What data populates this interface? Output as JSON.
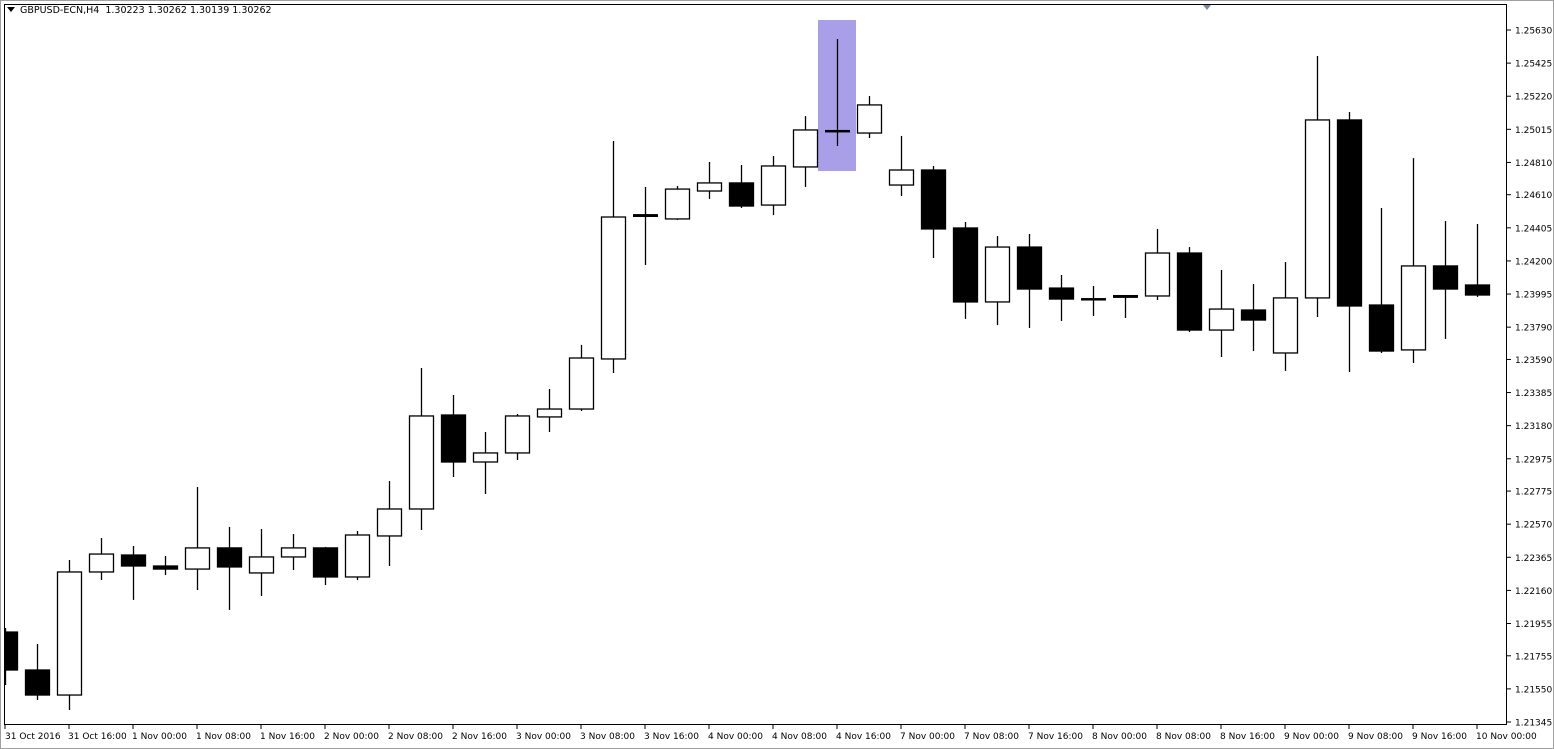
{
  "header": {
    "symbol_timeframe": "GBPUSD-ECN,H4",
    "ohlc_readout": "1.30223 1.30262 1.30139 1.30262"
  },
  "colors": {
    "bull_body": "#ffffff",
    "bear_body": "#000000",
    "highlight": "#a99fe8",
    "background": "#ffffff"
  },
  "chart_data": {
    "type": "candlestick",
    "title": "GBPUSD-ECN,H4",
    "ylim": [
      1.21345,
      1.2563
    ],
    "grid": false,
    "y_ticks": [
      "1.25630",
      "1.25425",
      "1.25220",
      "1.25015",
      "1.24810",
      "1.24610",
      "1.24405",
      "1.24200",
      "1.23995",
      "1.23790",
      "1.23590",
      "1.23385",
      "1.23180",
      "1.22975",
      "1.22775",
      "1.22570",
      "1.22365",
      "1.22160",
      "1.21955",
      "1.21755",
      "1.21550",
      "1.21345"
    ],
    "x_ticks": [
      "31 Oct 2016",
      "31 Oct 16:00",
      "1 Nov 00:00",
      "1 Nov 08:00",
      "1 Nov 16:00",
      "2 Nov 00:00",
      "2 Nov 08:00",
      "2 Nov 16:00",
      "3 Nov 00:00",
      "3 Nov 08:00",
      "3 Nov 16:00",
      "4 Nov 00:00",
      "4 Nov 08:00",
      "4 Nov 16:00",
      "7 Nov 00:00",
      "7 Nov 08:00",
      "7 Nov 16:00",
      "8 Nov 00:00",
      "8 Nov 08:00",
      "8 Nov 16:00",
      "9 Nov 00:00",
      "9 Nov 08:00",
      "9 Nov 16:00",
      "10 Nov 00:00"
    ],
    "highlighted_candle_index": 26,
    "candles": [
      {
        "o": 1.21902,
        "h": 1.21927,
        "l": 1.21574,
        "c": 1.21667
      },
      {
        "o": 1.21667,
        "h": 1.21828,
        "l": 1.21481,
        "c": 1.21512
      },
      {
        "o": 1.21512,
        "h": 1.22348,
        "l": 1.21419,
        "c": 1.22274
      },
      {
        "o": 1.22274,
        "h": 1.22484,
        "l": 1.22224,
        "c": 1.22385
      },
      {
        "o": 1.22379,
        "h": 1.22435,
        "l": 1.22101,
        "c": 1.22311
      },
      {
        "o": 1.22311,
        "h": 1.22373,
        "l": 1.22255,
        "c": 1.22292
      },
      {
        "o": 1.22292,
        "h": 1.228,
        "l": 1.22162,
        "c": 1.22423
      },
      {
        "o": 1.22423,
        "h": 1.22553,
        "l": 1.22039,
        "c": 1.22305
      },
      {
        "o": 1.22268,
        "h": 1.2254,
        "l": 1.22125,
        "c": 1.22367
      },
      {
        "o": 1.22367,
        "h": 1.22509,
        "l": 1.22286,
        "c": 1.22423
      },
      {
        "o": 1.22423,
        "h": 1.22429,
        "l": 1.22193,
        "c": 1.22243
      },
      {
        "o": 1.22243,
        "h": 1.22528,
        "l": 1.22224,
        "c": 1.22503
      },
      {
        "o": 1.22497,
        "h": 1.22837,
        "l": 1.22311,
        "c": 1.22664
      },
      {
        "o": 1.22664,
        "h": 1.23537,
        "l": 1.22534,
        "c": 1.2324
      },
      {
        "o": 1.23246,
        "h": 1.2337,
        "l": 1.22862,
        "c": 1.22955
      },
      {
        "o": 1.22955,
        "h": 1.23141,
        "l": 1.22757,
        "c": 1.23011
      },
      {
        "o": 1.23011,
        "h": 1.23252,
        "l": 1.22967,
        "c": 1.2324
      },
      {
        "o": 1.23234,
        "h": 1.23407,
        "l": 1.23141,
        "c": 1.23283
      },
      {
        "o": 1.23283,
        "h": 1.2368,
        "l": 1.23271,
        "c": 1.23599
      },
      {
        "o": 1.23593,
        "h": 1.24943,
        "l": 1.23506,
        "c": 1.24472
      },
      {
        "o": 1.24484,
        "h": 1.24658,
        "l": 1.24175,
        "c": 1.24472
      },
      {
        "o": 1.2446,
        "h": 1.24664,
        "l": 1.24454,
        "c": 1.24645
      },
      {
        "o": 1.24633,
        "h": 1.24813,
        "l": 1.24584,
        "c": 1.24683
      },
      {
        "o": 1.24683,
        "h": 1.24794,
        "l": 1.24528,
        "c": 1.2454
      },
      {
        "o": 1.24546,
        "h": 1.2485,
        "l": 1.24484,
        "c": 1.24788
      },
      {
        "o": 1.24782,
        "h": 1.25097,
        "l": 1.24658,
        "c": 1.25011
      },
      {
        "o": 1.25005,
        "h": 1.25574,
        "l": 1.24912,
        "c": 1.25003
      },
      {
        "o": 1.24992,
        "h": 1.25221,
        "l": 1.24961,
        "c": 1.25166
      },
      {
        "o": 1.2467,
        "h": 1.24974,
        "l": 1.24602,
        "c": 1.24763
      },
      {
        "o": 1.24763,
        "h": 1.24788,
        "l": 1.24218,
        "c": 1.24398
      },
      {
        "o": 1.24404,
        "h": 1.24441,
        "l": 1.23841,
        "c": 1.23946
      },
      {
        "o": 1.23946,
        "h": 1.24354,
        "l": 1.23803,
        "c": 1.24286
      },
      {
        "o": 1.24286,
        "h": 1.24367,
        "l": 1.23785,
        "c": 1.24026
      },
      {
        "o": 1.24032,
        "h": 1.24113,
        "l": 1.23828,
        "c": 1.23964
      },
      {
        "o": 1.23964,
        "h": 1.24045,
        "l": 1.23859,
        "c": 1.23963
      },
      {
        "o": 1.23971,
        "h": 1.23989,
        "l": 1.23847,
        "c": 1.23983
      },
      {
        "o": 1.23983,
        "h": 1.24398,
        "l": 1.23958,
        "c": 1.24249
      },
      {
        "o": 1.24249,
        "h": 1.24286,
        "l": 1.2376,
        "c": 1.23772
      },
      {
        "o": 1.23772,
        "h": 1.24144,
        "l": 1.23605,
        "c": 1.23902
      },
      {
        "o": 1.23896,
        "h": 1.24057,
        "l": 1.23642,
        "c": 1.23834
      },
      {
        "o": 1.2363,
        "h": 1.24193,
        "l": 1.23519,
        "c": 1.23971
      },
      {
        "o": 1.23971,
        "h": 1.25469,
        "l": 1.23853,
        "c": 1.25073
      },
      {
        "o": 1.25073,
        "h": 1.25122,
        "l": 1.23512,
        "c": 1.23921
      },
      {
        "o": 1.23927,
        "h": 1.24528,
        "l": 1.2363,
        "c": 1.23642
      },
      {
        "o": 1.23649,
        "h": 1.24837,
        "l": 1.23568,
        "c": 1.24169
      },
      {
        "o": 1.24169,
        "h": 1.24447,
        "l": 1.23717,
        "c": 1.24026
      },
      {
        "o": 1.24051,
        "h": 1.24429,
        "l": 1.23977,
        "c": 1.23989
      }
    ]
  }
}
